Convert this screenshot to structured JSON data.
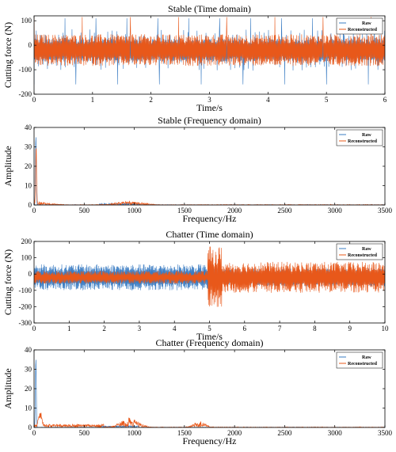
{
  "colors": {
    "raw": "#3a7cc3",
    "reconstructed": "#e8581a",
    "axis": "#000000"
  },
  "chart_data": [
    {
      "type": "line",
      "title": "Stable (Time domain)",
      "xlabel": "Time/s",
      "ylabel": "Cutting force (N)",
      "xlim": [
        0,
        6
      ],
      "ylim": [
        -200,
        120
      ],
      "xticks": [
        "0",
        "1",
        "2",
        "3",
        "4",
        "5",
        "6"
      ],
      "yticks": [
        "-200",
        "-100",
        "0",
        "100"
      ],
      "legend": {
        "position": "top-right",
        "entries": [
          "Raw",
          "Reconstructed"
        ]
      },
      "series": [
        {
          "name": "Raw",
          "description_values": {
            "baseline": -20,
            "envelope": [
              -90,
              80
            ],
            "max_spike": 120,
            "min_spike": -170
          }
        },
        {
          "name": "Reconstructed",
          "description_values": {
            "baseline": -20,
            "envelope": [
              -70,
              60
            ],
            "max_spike": 120,
            "min_spike": -130
          }
        }
      ]
    },
    {
      "type": "line",
      "title": "Stable (Frequency domain)",
      "xlabel": "Frequency/Hz",
      "ylabel": "Amplitude",
      "xlim": [
        0,
        3500
      ],
      "ylim": [
        0,
        40
      ],
      "xticks": [
        "0",
        "500",
        "1000",
        "1500",
        "2000",
        "2500",
        "3000",
        "3500"
      ],
      "yticks": [
        "0",
        "10",
        "20",
        "30",
        "40"
      ],
      "legend": {
        "position": "top-right",
        "entries": [
          "Raw",
          "Reconstructed"
        ]
      },
      "series": [
        {
          "name": "Raw",
          "description_values": {
            "peak_freq": 20,
            "peak_amplitude": 37
          }
        },
        {
          "name": "Reconstructed",
          "description_values": {
            "peak_freq": 20,
            "peak_amplitude": 37,
            "hump_freq": 950,
            "hump_amplitude": 2
          }
        }
      ]
    },
    {
      "type": "line",
      "title": "Chatter (Time domain)",
      "xlabel": "Time/s",
      "ylabel": "Cutting force (N)",
      "xlim": [
        0,
        10
      ],
      "ylim": [
        -300,
        200
      ],
      "xticks": [
        "0",
        "1",
        "2",
        "3",
        "4",
        "5",
        "6",
        "7",
        "8",
        "9",
        "10"
      ],
      "yticks": [
        "-300",
        "-200",
        "-100",
        "0",
        "100",
        "200"
      ],
      "legend": {
        "position": "top-right",
        "entries": [
          "Raw",
          "Reconstructed"
        ]
      },
      "series": [
        {
          "name": "Raw",
          "description_values": {
            "baseline": -20,
            "envelope_before_5s": [
              -90,
              90
            ],
            "envelope_after_5s": [
              -80,
              60
            ]
          }
        },
        {
          "name": "Reconstructed",
          "description_values": {
            "baseline": -20,
            "envelope_before_5s": [
              -60,
              40
            ],
            "envelope_after_5s": [
              -110,
              100
            ],
            "burst_time": 5.05,
            "burst_range": [
              -240,
              180
            ]
          }
        }
      ]
    },
    {
      "type": "line",
      "title": "Chatter (Frequency domain)",
      "xlabel": "Frequency/Hz",
      "ylabel": "Amplitude",
      "xlim": [
        0,
        3500
      ],
      "ylim": [
        0,
        40
      ],
      "xticks": [
        "0",
        "500",
        "1000",
        "1500",
        "2000",
        "2500",
        "3000",
        "3500"
      ],
      "yticks": [
        "0",
        "10",
        "20",
        "30",
        "40"
      ],
      "legend": {
        "position": "top-right",
        "entries": [
          "Raw",
          "Reconstructed"
        ]
      },
      "series": [
        {
          "name": "Raw",
          "description_values": {
            "peak_freq": 20,
            "peak_amplitude": 37
          }
        },
        {
          "name": "Reconstructed",
          "description_values": {
            "peak_freq": 60,
            "peak_amplitude": 12,
            "hump_freq": 950,
            "hump_amplitude": 5,
            "hump2_freq": 1650,
            "hump2_amplitude": 3
          }
        }
      ]
    }
  ]
}
